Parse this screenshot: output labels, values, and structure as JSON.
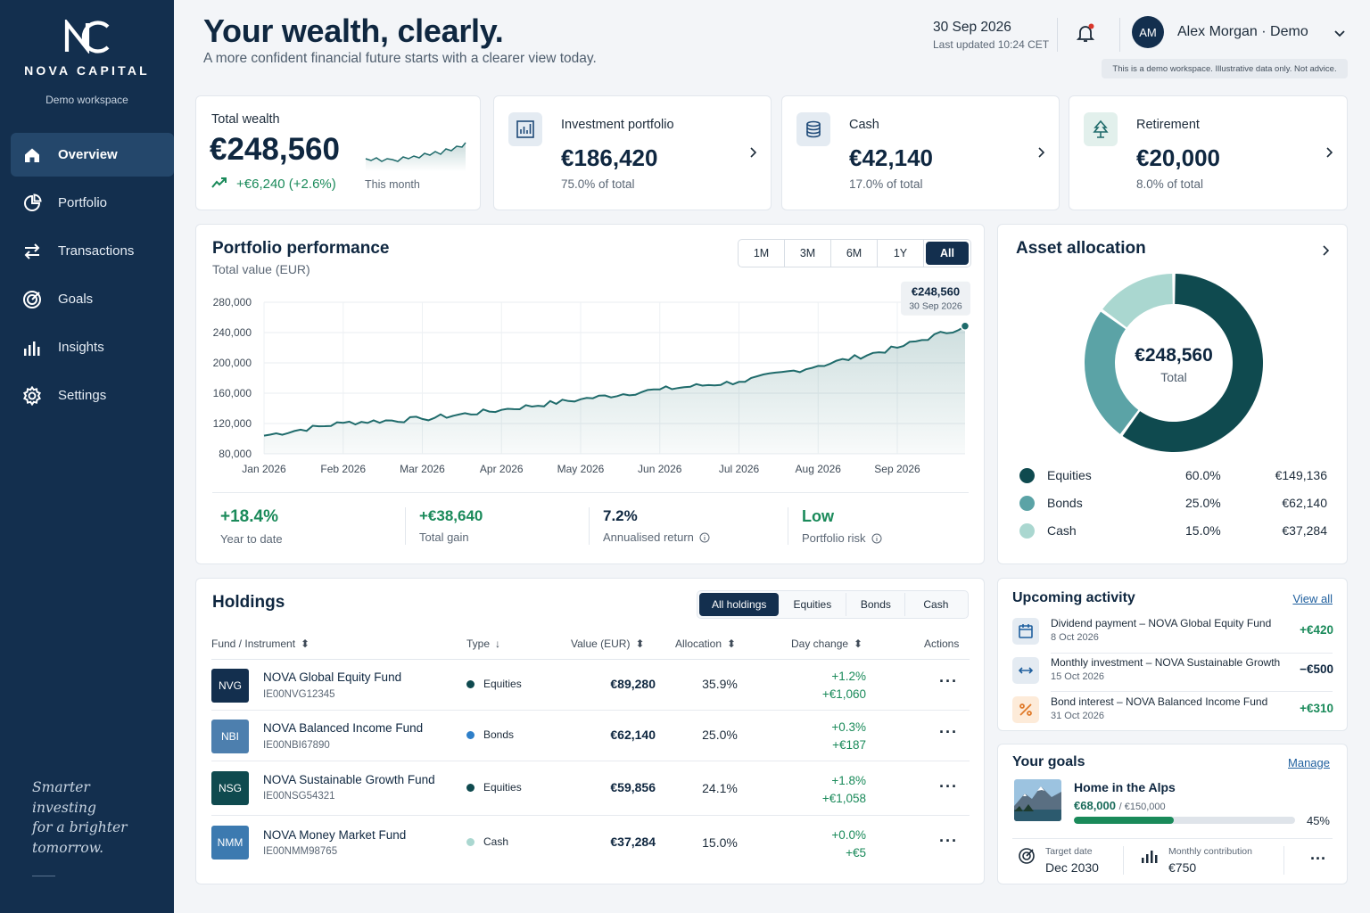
{
  "brand": {
    "name": "NOVA CAPITAL",
    "workspace": "Demo workspace"
  },
  "nav": [
    {
      "label": "Overview",
      "icon": "home-icon",
      "active": true
    },
    {
      "label": "Portfolio",
      "icon": "pie-chart-icon"
    },
    {
      "label": "Transactions",
      "icon": "arrows-swap-icon"
    },
    {
      "label": "Goals",
      "icon": "target-icon"
    },
    {
      "label": "Insights",
      "icon": "bar-chart-icon"
    },
    {
      "label": "Settings",
      "icon": "gear-icon"
    }
  ],
  "tagline": "Smarter\ninvesting\nfor a brighter\ntomorrow.",
  "header": {
    "title": "Your wealth, clearly.",
    "subtitle": "A more confident financial future starts with a clearer view today.",
    "date": "30 Sep 2026",
    "last_updated": "Last updated 10:24 CET",
    "user_initials": "AM",
    "user_name": "Alex Morgan · Demo",
    "demo_notice": "This is a demo workspace. Illustrative data only. Not advice."
  },
  "kpis": {
    "total": {
      "label": "Total wealth",
      "value": "€248,560",
      "change": "+€6,240 (+2.6%)",
      "period": "This month"
    },
    "cards": [
      {
        "label": "Investment portfolio",
        "value": "€186,420",
        "sub": "75.0% of total",
        "icon": "investment-chart-icon"
      },
      {
        "label": "Cash",
        "value": "€42,140",
        "sub": "17.0% of total",
        "icon": "database-coins-icon"
      },
      {
        "label": "Retirement",
        "value": "€20,000",
        "sub": "8.0% of total",
        "icon": "tree-icon"
      }
    ]
  },
  "performance": {
    "title": "Portfolio performance",
    "subtitle": "Total value (EUR)",
    "ranges": [
      "1M",
      "3M",
      "6M",
      "1Y",
      "All"
    ],
    "active_range": "All",
    "tooltip_value": "€248,560",
    "tooltip_date": "30 Sep 2026",
    "stats": [
      {
        "value": "+18.4%",
        "label": "Year to date",
        "color": "#1a8a5a"
      },
      {
        "value": "+€38,640",
        "label": "Total gain",
        "color": "#1a8a5a"
      },
      {
        "value": "7.2%",
        "label": "Annualised return",
        "color": "#0f2740",
        "info": true
      },
      {
        "value": "Low",
        "label": "Portfolio risk",
        "color": "#1a8a5a",
        "info": true
      }
    ]
  },
  "chart_data": [
    {
      "type": "area",
      "title": "Portfolio performance",
      "ylabel": "Total value (EUR)",
      "x_ticks": [
        "Jan 2026",
        "Feb 2026",
        "Mar 2026",
        "Apr 2026",
        "May 2026",
        "Jun 2026",
        "Jul 2026",
        "Aug 2026",
        "Sep 2026"
      ],
      "y_ticks": [
        80000,
        120000,
        160000,
        200000,
        240000,
        280000
      ],
      "ylim": [
        80000,
        280000
      ],
      "grid": true,
      "x": [
        "Jan 2026",
        "Feb 2026",
        "Mar 2026",
        "Apr 2026",
        "May 2026",
        "Jun 2026",
        "Jul 2026",
        "Aug 2026",
        "Sep 2026",
        "30 Sep 2026"
      ],
      "values": [
        104000,
        121000,
        126000,
        138000,
        152000,
        165000,
        175000,
        196000,
        220000,
        248560
      ],
      "color": "#1f6b6b"
    },
    {
      "type": "pie",
      "title": "Asset allocation",
      "center_value": "€248,560",
      "center_label": "Total",
      "categories": [
        "Equities",
        "Bonds",
        "Cash"
      ],
      "values": [
        60.0,
        25.0,
        15.0
      ],
      "amounts": [
        "€149,136",
        "€62,140",
        "€37,284"
      ],
      "pct_labels": [
        "60.0%",
        "25.0%",
        "15.0%"
      ],
      "colors": [
        "#0f4a4f",
        "#5ba3a6",
        "#aad7d0"
      ]
    }
  ],
  "allocation": {
    "title": "Asset allocation"
  },
  "holdings": {
    "title": "Holdings",
    "filters": [
      "All holdings",
      "Equities",
      "Bonds",
      "Cash"
    ],
    "columns": [
      "Fund / Instrument",
      "Type",
      "Value (EUR)",
      "Allocation",
      "Day change",
      "Actions"
    ],
    "rows": [
      {
        "code": "NVG",
        "name": "NOVA Global Equity Fund",
        "isin": "IE00NVG12345",
        "type": "Equities",
        "value": "€89,280",
        "alloc": "35.9%",
        "pct": "+1.2%",
        "abs": "+€1,060",
        "badge_color": "#132f4e",
        "type_color": "#0f4a4f"
      },
      {
        "code": "NBI",
        "name": "NOVA Balanced Income Fund",
        "isin": "IE00NBI67890",
        "type": "Bonds",
        "value": "€62,140",
        "alloc": "25.0%",
        "pct": "+0.3%",
        "abs": "+€187",
        "badge_color": "#4d7fae",
        "type_color": "#2f7fc9"
      },
      {
        "code": "NSG",
        "name": "NOVA Sustainable Growth Fund",
        "isin": "IE00NSG54321",
        "type": "Equities",
        "value": "€59,856",
        "alloc": "24.1%",
        "pct": "+1.8%",
        "abs": "+€1,058",
        "badge_color": "#0f4a4f",
        "type_color": "#0f4a4f"
      },
      {
        "code": "NMM",
        "name": "NOVA Money Market Fund",
        "isin": "IE00NMM98765",
        "type": "Cash",
        "value": "€37,284",
        "alloc": "15.0%",
        "pct": "+0.0%",
        "abs": "+€5",
        "badge_color": "#3c7ab0",
        "type_color": "#aad7d0"
      }
    ]
  },
  "activity": {
    "title": "Upcoming activity",
    "view_all": "View all",
    "items": [
      {
        "title": "Dividend payment – NOVA Global Equity Fund",
        "date": "8 Oct 2026",
        "amount": "+€420",
        "icon": "calendar-icon",
        "color": "#1a8a5a",
        "bg": "#e4ebf2"
      },
      {
        "title": "Monthly investment – NOVA Sustainable Growth",
        "date": "15 Oct 2026",
        "amount": "−€500",
        "icon": "transfer-icon",
        "color": "#0f2740",
        "bg": "#e4ebf2"
      },
      {
        "title": "Bond interest – NOVA Balanced Income Fund",
        "date": "31 Oct 2026",
        "amount": "+€310",
        "icon": "percent-icon",
        "color": "#1a8a5a",
        "bg": "#fdebd9"
      }
    ]
  },
  "goals": {
    "title": "Your goals",
    "manage": "Manage",
    "name": "Home in the Alps",
    "current": "€68,000",
    "target": "/ €150,000",
    "progress_pct": 45,
    "progress_label": "45%",
    "target_date_label": "Target date",
    "target_date": "Dec 2030",
    "contribution_label": "Monthly contribution",
    "contribution": "€750"
  }
}
